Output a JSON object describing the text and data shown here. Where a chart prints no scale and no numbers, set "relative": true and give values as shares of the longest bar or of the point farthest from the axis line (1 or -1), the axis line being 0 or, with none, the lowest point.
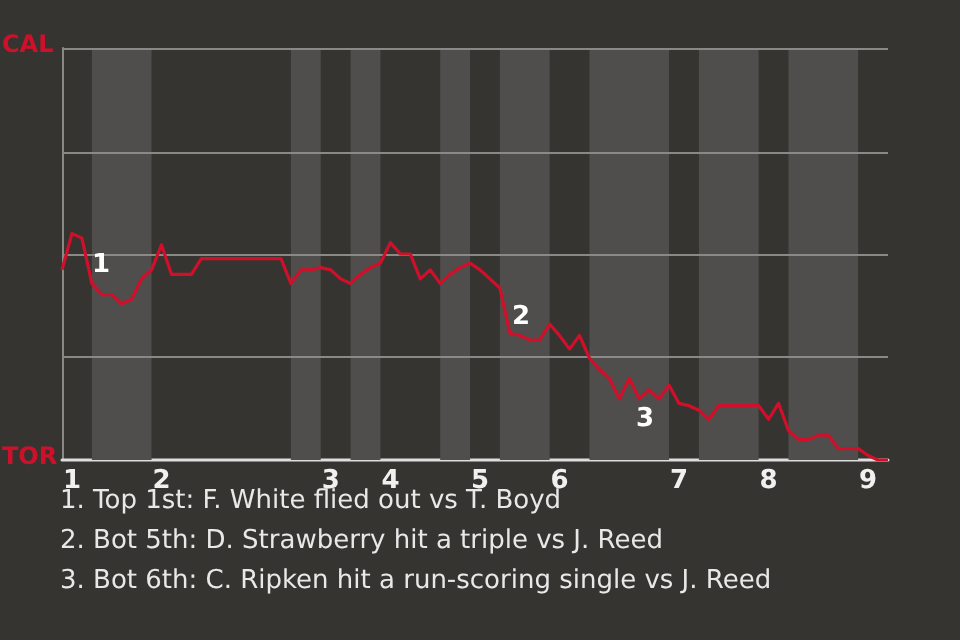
{
  "chart_data": {
    "type": "line",
    "relative": true,
    "categories": [
      null,
      "1",
      null,
      null,
      null,
      null,
      null,
      null,
      null,
      null,
      "2",
      null,
      null,
      null,
      null,
      null,
      null,
      null,
      null,
      null,
      null,
      null,
      null,
      null,
      null,
      null,
      null,
      "3",
      null,
      null,
      null,
      null,
      null,
      "4",
      null,
      null,
      null,
      null,
      null,
      null,
      null,
      null,
      "5",
      null,
      null,
      null,
      null,
      null,
      null,
      null,
      "6",
      null,
      null,
      null,
      null,
      null,
      null,
      null,
      null,
      null,
      null,
      null,
      "7",
      null,
      null,
      null,
      null,
      null,
      null,
      null,
      null,
      "8",
      null,
      null,
      null,
      null,
      null,
      null,
      null,
      null,
      null,
      "9",
      null,
      null
    ],
    "series": [
      {
        "color": "#d0102a",
        "values": [
          0.84,
          1,
          0.98,
          0.78,
          0.73,
          0.73,
          0.69,
          0.71,
          0.8,
          0.84,
          0.95,
          0.82,
          0.82,
          0.82,
          0.89,
          0.89,
          0.89,
          0.89,
          0.89,
          0.89,
          0.89,
          0.89,
          0.89,
          0.78,
          0.84,
          0.84,
          0.85,
          0.84,
          0.8,
          0.78,
          0.82,
          0.85,
          0.87,
          0.96,
          0.91,
          0.91,
          0.8,
          0.84,
          0.78,
          0.82,
          0.85,
          0.87,
          0.84,
          0.8,
          0.76,
          0.56,
          0.55,
          0.53,
          0.53,
          0.6,
          0.55,
          0.49,
          0.55,
          0.45,
          0.4,
          0.36,
          0.27,
          0.36,
          0.27,
          0.31,
          0.27,
          0.33,
          0.25,
          0.24,
          0.22,
          0.18,
          0.24,
          0.24,
          0.24,
          0.24,
          0.24,
          0.18,
          0.25,
          0.13,
          0.09,
          0.09,
          0.11,
          0.11,
          0.05,
          0.05,
          0.05,
          0.02,
          0,
          0
        ]
      }
    ],
    "marker": "none",
    "ref_lines": [
      {
        "axis": "y",
        "value": 0.455,
        "color": "#8a8986"
      },
      {
        "axis": "y",
        "value": 0.91,
        "color": "#8a8986"
      },
      {
        "axis": "y",
        "value": 1.365,
        "color": "#8a8986"
      },
      {
        "axis": "y",
        "value": 1.82,
        "color": "#8a8986"
      }
    ],
    "annotations": [
      "CAL",
      "TOR",
      "1",
      "2",
      "3",
      "1. Top 1st: F. White flied out vs T. Boyd",
      "2. Bot 5th: D. Strawberry hit a triple vs J. Reed",
      "3. Bot 6th: C. Ripken hit a run-scoring single vs J. Reed"
    ]
  }
}
